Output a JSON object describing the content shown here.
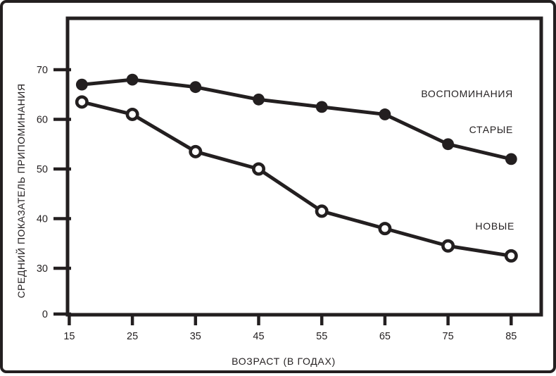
{
  "figure": {
    "background": "#ffffff",
    "border_color": "#231f20"
  },
  "chart_data": {
    "type": "line",
    "title": "",
    "xlabel": "ВОЗРАСТ (В ГОДАХ)",
    "ylabel": "СРЕДНИЙ ПОКАЗАТЕЛЬ ПРИПОМИНАНИЯ",
    "ink_color": "#231f20",
    "x": [
      17,
      25,
      35,
      45,
      55,
      65,
      75,
      85
    ],
    "series": [
      {
        "name": "СТАРЫЕ ВОСПОМИНАНИЯ",
        "marker": "filled-circle",
        "values": [
          67,
          68,
          66.5,
          64,
          62.5,
          61,
          55,
          52
        ]
      },
      {
        "name": "НОВЫЕ ВОСПОМИНАНИЯ",
        "marker": "open-circle",
        "values": [
          63.5,
          61,
          53.5,
          50,
          41.5,
          38,
          34.5,
          32.5
        ]
      }
    ],
    "x_ticks": [
      15,
      25,
      35,
      45,
      55,
      65,
      75,
      85
    ],
    "y_ticks": [
      0,
      30,
      40,
      50,
      60,
      70
    ],
    "xlim": [
      15,
      89
    ],
    "ylim": [
      0,
      78
    ],
    "y_axis_note": "axis distance between 0 and 30 is compressed (no break marks drawn)",
    "grid": false,
    "legend_position": "annotations at right side of plot",
    "annotations": [
      {
        "text": "ВОСПОМИНАНИЯ",
        "series": "СТАРЫЕ ВОСПОМИНАНИЯ"
      },
      {
        "text": "СТАРЫЕ",
        "series": "СТАРЫЕ ВОСПОМИНАНИЯ"
      },
      {
        "text": "НОВЫЕ",
        "series": "НОВЫЕ ВОСПОМИНАНИЯ"
      }
    ]
  }
}
